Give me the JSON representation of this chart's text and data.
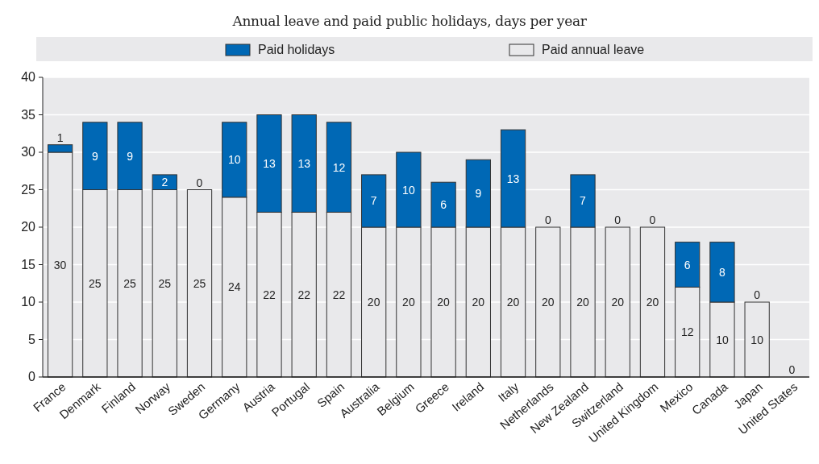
{
  "chart_data": {
    "type": "bar",
    "subtitle": "Annual leave and paid public holidays, days per year",
    "stacked": true,
    "categories": [
      "France",
      "Denmark",
      "Finland",
      "Norway",
      "Sweden",
      "Germany",
      "Austria",
      "Portugal",
      "Spain",
      "Australia",
      "Belgium",
      "Greece",
      "Ireland",
      "Italy",
      "Netherlands",
      "New Zealand",
      "Switzerland",
      "United Kingdom",
      "Mexico",
      "Canada",
      "Japan",
      "United States"
    ],
    "series": [
      {
        "name": "Paid annual leave",
        "color": "#e9e9eb",
        "values": [
          30,
          25,
          25,
          25,
          25,
          24,
          22,
          22,
          22,
          20,
          20,
          20,
          20,
          20,
          20,
          20,
          20,
          20,
          12,
          10,
          10,
          0
        ],
        "value_labels": [
          "30",
          "25",
          "25",
          "25",
          "25",
          "24",
          "22",
          "22",
          "22",
          "20",
          "20",
          "20",
          "20",
          "20",
          "20",
          "20",
          "20",
          "20",
          "12",
          "10",
          "10",
          "0"
        ]
      },
      {
        "name": "Paid holidays",
        "color": "#0068b5",
        "values": [
          1,
          9,
          9,
          2,
          0,
          10,
          13,
          13,
          12,
          7,
          10,
          6,
          9,
          13,
          0,
          7,
          0,
          0,
          6,
          8,
          0,
          0
        ],
        "value_labels": [
          "1",
          "9",
          "9",
          "2",
          "0",
          "10",
          "13",
          "13",
          "12",
          "7",
          "10",
          "6",
          "9",
          "13",
          "0",
          "7",
          "0",
          "0",
          "6",
          "8",
          "0",
          null
        ]
      }
    ],
    "ylim": [
      0,
      40
    ],
    "yticks": [
      0,
      5,
      10,
      15,
      20,
      25,
      30,
      35,
      40
    ],
    "grid": "y",
    "legend": "top"
  }
}
